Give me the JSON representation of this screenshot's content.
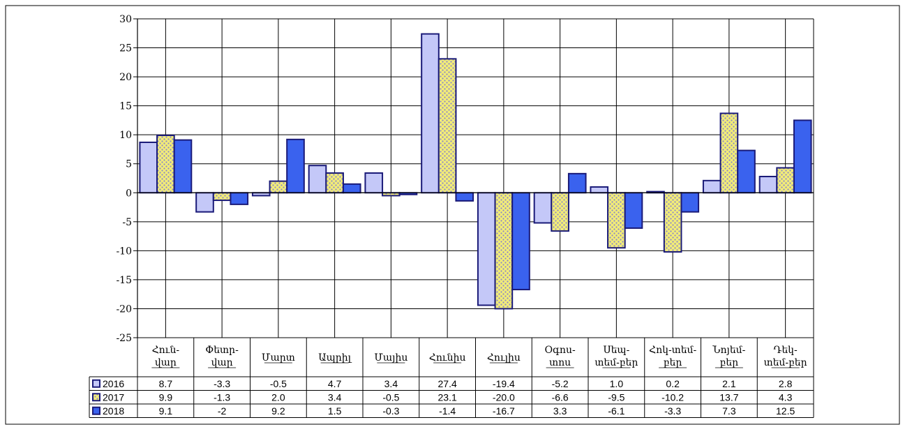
{
  "chart_data": {
    "type": "bar",
    "title": "",
    "header_text": "",
    "categories": [
      [
        "Հուն-",
        "վար"
      ],
      [
        "Փետր-",
        "վար"
      ],
      [
        "Մարտ"
      ],
      [
        "Ապրիլ"
      ],
      [
        "Մայիս"
      ],
      [
        "Հունիս"
      ],
      [
        "Հուլիս"
      ],
      [
        "Օգոս-",
        "տոս"
      ],
      [
        "Սեպ-",
        "տեմ-բեր"
      ],
      [
        "Հոկ-տեմ-",
        "բեր"
      ],
      [
        "Նոյեմ-",
        "բեր"
      ],
      [
        "Դեկ-",
        "տեմ-բեր"
      ]
    ],
    "series": [
      {
        "name": "2016",
        "color": "#c4c8f8",
        "pattern": "solid",
        "values": [
          8.7,
          -3.3,
          -0.5,
          4.7,
          3.4,
          27.4,
          -19.4,
          -5.2,
          1.0,
          0.2,
          2.1,
          2.8
        ],
        "labels": [
          "8.7",
          "-3.3",
          "-0.5",
          "4.7",
          "3.4",
          "27.4",
          "-19.4",
          "-5.2",
          "1.0",
          "0.2",
          "2.1",
          "2.8"
        ]
      },
      {
        "name": "2017",
        "color": "#f2ec78",
        "pattern": "dots",
        "values": [
          9.9,
          -1.3,
          2.0,
          3.4,
          -0.5,
          23.1,
          -20.0,
          -6.6,
          -9.5,
          -10.2,
          13.7,
          4.3
        ],
        "labels": [
          "9.9",
          "-1.3",
          "2.0",
          "3.4",
          "-0.5",
          "23.1",
          "-20.0",
          "-6.6",
          "-9.5",
          "-10.2",
          "13.7",
          "4.3"
        ]
      },
      {
        "name": "2018",
        "color": "#3a62ee",
        "pattern": "solid",
        "values": [
          9.1,
          -2,
          9.2,
          1.5,
          -0.3,
          -1.4,
          -16.7,
          3.3,
          -6.1,
          -3.3,
          7.3,
          12.5
        ],
        "labels": [
          "9.1",
          "-2",
          "9.2",
          "1.5",
          "-0.3",
          "-1.4",
          "-16.7",
          "3.3",
          "-6.1",
          "-3.3",
          "7.3",
          "12.5"
        ]
      }
    ],
    "y_ticks": [
      "30",
      "25",
      "20",
      "15",
      "10",
      "5",
      "0",
      "-5",
      "-10",
      "-15",
      "-20",
      "-25"
    ],
    "ylim": [
      -25,
      30
    ],
    "y_step": 5,
    "grid": true,
    "legend": "data-table"
  }
}
